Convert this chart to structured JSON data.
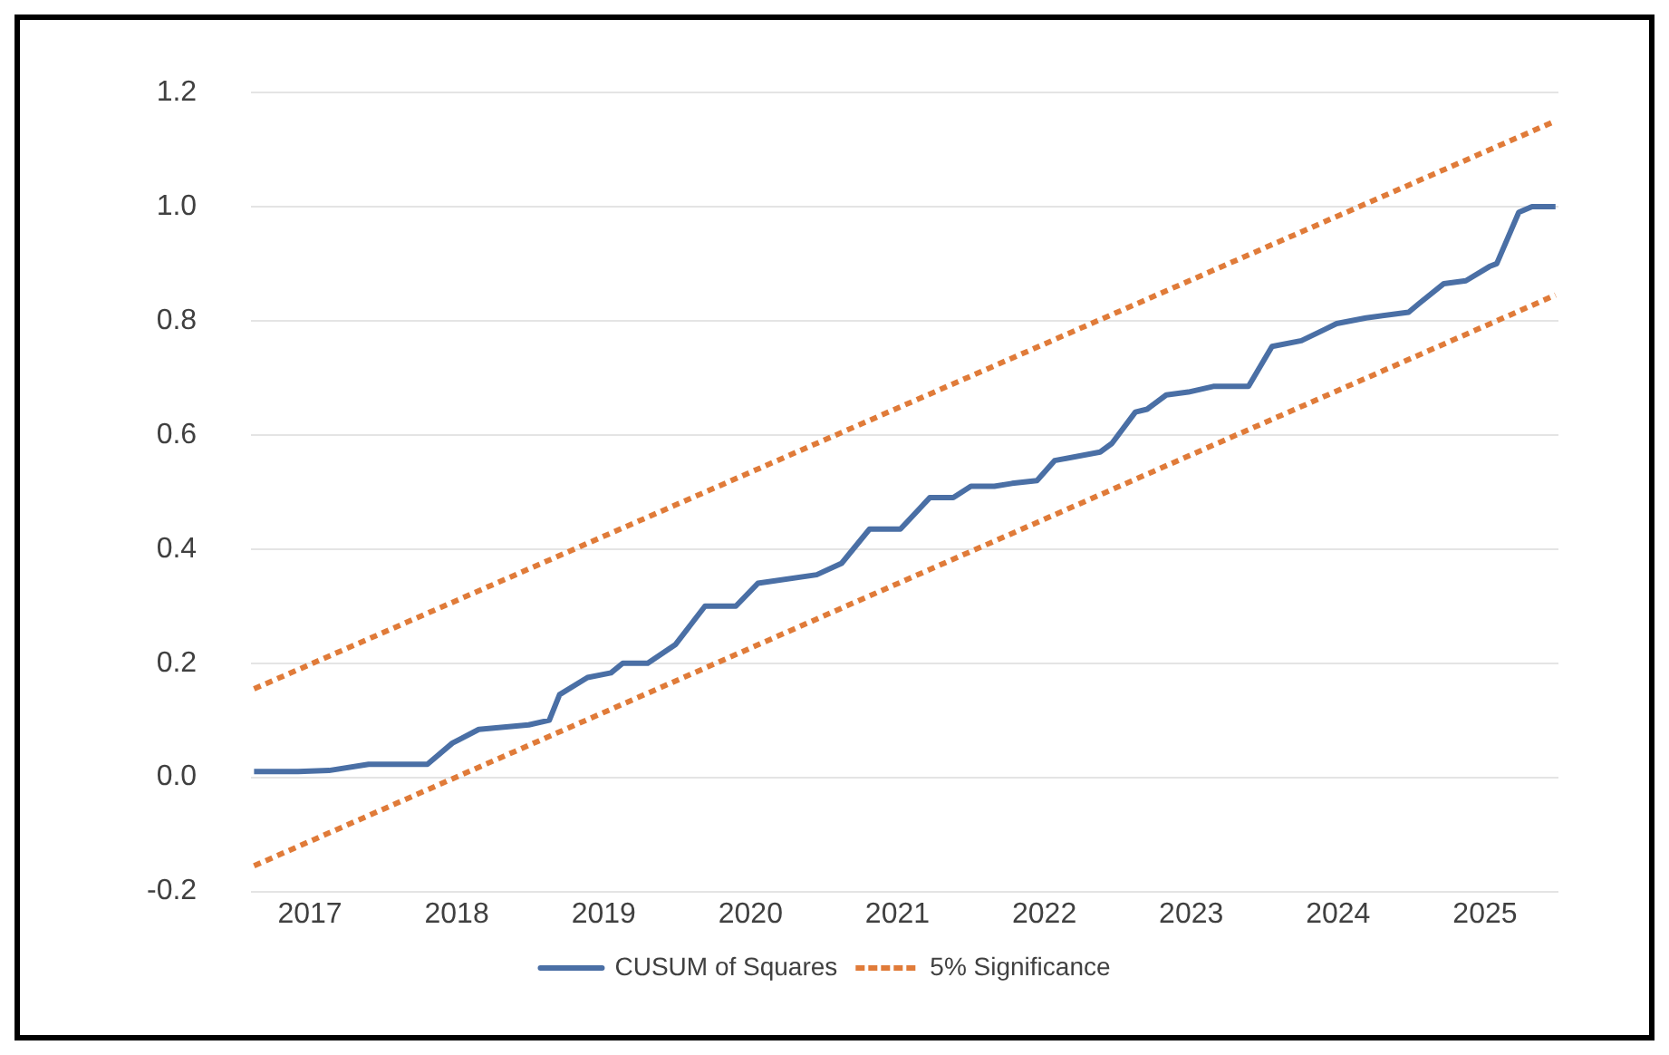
{
  "chart_data": {
    "type": "line",
    "xlim": [
      2017.1,
      2026.0
    ],
    "xticks": [
      {
        "value": 2017.5,
        "label": "2017"
      },
      {
        "value": 2018.5,
        "label": "2018"
      },
      {
        "value": 2019.5,
        "label": "2019"
      },
      {
        "value": 2020.5,
        "label": "2020"
      },
      {
        "value": 2021.5,
        "label": "2021"
      },
      {
        "value": 2022.5,
        "label": "2022"
      },
      {
        "value": 2023.5,
        "label": "2023"
      },
      {
        "value": 2024.5,
        "label": "2024"
      },
      {
        "value": 2025.5,
        "label": "2025"
      }
    ],
    "ylim": [
      -0.2,
      1.2
    ],
    "yticks": [
      {
        "value": -0.2,
        "label": "-0.2"
      },
      {
        "value": 0,
        "label": "0.0"
      },
      {
        "value": 0.2,
        "label": "0.2"
      },
      {
        "value": 0.4,
        "label": "0.4"
      },
      {
        "value": 0.6,
        "label": "0.6"
      },
      {
        "value": 0.8,
        "label": "0.8"
      },
      {
        "value": 1,
        "label": "1.0"
      },
      {
        "value": 1.2,
        "label": "1.2"
      }
    ],
    "grid": "y",
    "legend": "bottom",
    "marker": "none",
    "series": [
      {
        "name": "CUSUM of Squares",
        "color": "#4a6fa5",
        "line_style": "solid",
        "x": [
          2017.12,
          2017.42,
          2017.63,
          2017.9,
          2018.3,
          2018.47,
          2018.65,
          2018.99,
          2019.13,
          2019.2,
          2019.39,
          2019.55,
          2019.63,
          2019.8,
          2019.99,
          2020.19,
          2020.4,
          2020.55,
          2020.95,
          2021.12,
          2021.31,
          2021.52,
          2021.72,
          2021.88,
          2022.0,
          2022.16,
          2022.28,
          2022.45,
          2022.57,
          2022.88,
          2022.96,
          2023.12,
          2023.2,
          2023.33,
          2023.48,
          2023.65,
          2023.89,
          2024.05,
          2024.25,
          2024.41,
          2024.49,
          2024.69,
          2024.98,
          2025.05,
          2025.22,
          2025.37,
          2025.53,
          2025.58,
          2025.73,
          2025.82,
          2025.98
        ],
        "values": [
          0.01,
          0.01,
          0.012,
          0.023,
          0.023,
          0.06,
          0.084,
          0.092,
          0.1,
          0.145,
          0.175,
          0.183,
          0.2,
          0.2,
          0.233,
          0.3,
          0.3,
          0.34,
          0.355,
          0.375,
          0.435,
          0.435,
          0.49,
          0.49,
          0.51,
          0.51,
          0.515,
          0.52,
          0.555,
          0.57,
          0.585,
          0.64,
          0.645,
          0.67,
          0.675,
          0.685,
          0.685,
          0.755,
          0.765,
          0.785,
          0.795,
          0.805,
          0.815,
          0.83,
          0.865,
          0.87,
          0.895,
          0.9,
          0.99,
          1.0,
          1.0
        ]
      },
      {
        "name": "5% Significance",
        "color": "#e07b39",
        "line_style": "dashed",
        "x": [
          2017.12,
          2025.98
        ],
        "values": [
          0.155,
          1.15
        ]
      },
      {
        "color": "#e07b39",
        "line_style": "dashed",
        "x": [
          2017.12,
          2025.98
        ],
        "values": [
          -0.155,
          0.845
        ]
      }
    ]
  }
}
